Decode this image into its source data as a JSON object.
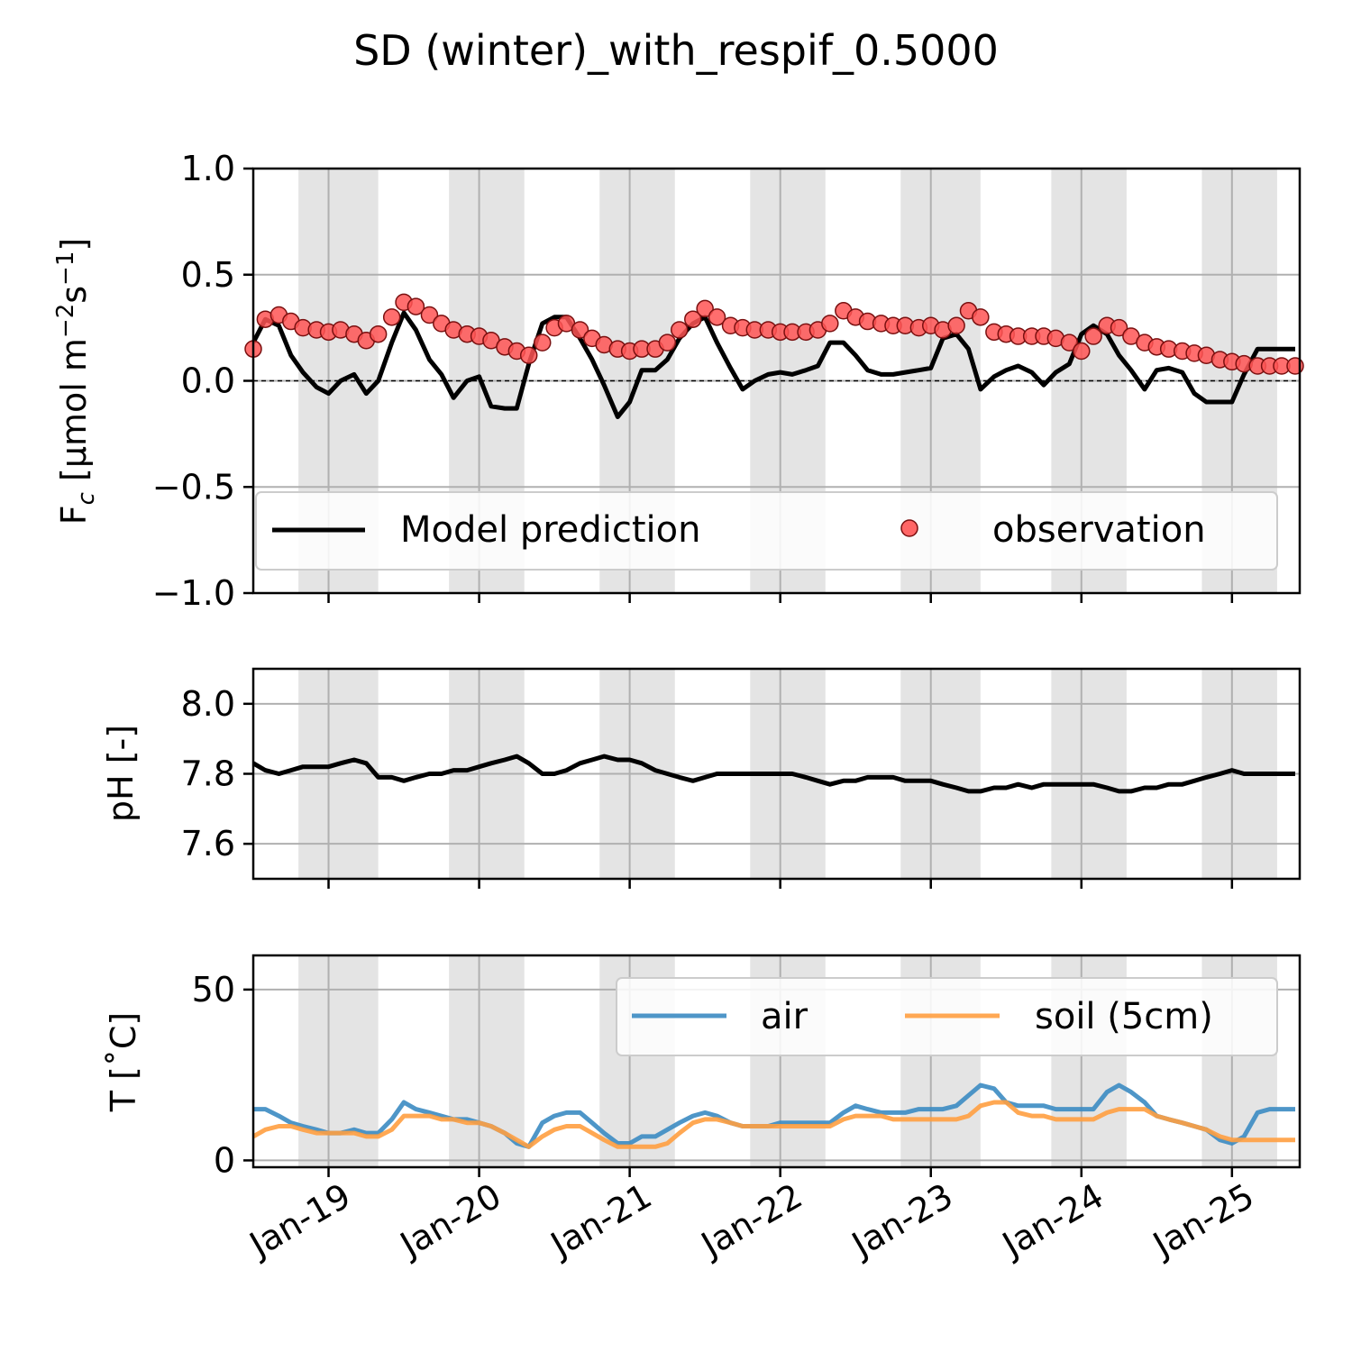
{
  "figure": {
    "title": "SD (winter)_with_respif_0.5000",
    "background": "#ffffff",
    "shade_color": "#e4e4e4",
    "grid_color": "#b0b0b0"
  },
  "chart_data": [
    {
      "type": "line",
      "panel": "flux",
      "ylabel": "F_c [μmol m⁻²s⁻¹]",
      "ylabel_parts": {
        "main": "F",
        "sub": "c",
        "unit": " [μmol m",
        "sup1": "−2",
        "mid": "s",
        "sup2": "−1",
        "end": "]"
      },
      "ylim": [
        -1.0,
        1.0
      ],
      "yticks": [
        -1.0,
        -0.5,
        0.0,
        0.5,
        1.0
      ],
      "ytick_labels": [
        "−1.0",
        "−0.5",
        "0.0",
        "0.5",
        "1.0"
      ],
      "xlim": [
        "Jan-18 12:00",
        "Jan-25 12:00"
      ],
      "grid": true,
      "zero_line": true,
      "legend": {
        "placement": "lower center",
        "columns": 2
      },
      "series": [
        {
          "name": "Model prediction",
          "kind": "line",
          "color": "#000000",
          "x": [
            18.5,
            18.58,
            18.67,
            18.75,
            18.83,
            18.92,
            19.0,
            19.08,
            19.17,
            19.25,
            19.33,
            19.42,
            19.5,
            19.58,
            19.67,
            19.75,
            19.83,
            19.92,
            20.0,
            20.08,
            20.17,
            20.25,
            20.33,
            20.42,
            20.5,
            20.58,
            20.67,
            20.75,
            20.83,
            20.92,
            21.0,
            21.08,
            21.17,
            21.25,
            21.33,
            21.42,
            21.5,
            21.58,
            21.67,
            21.75,
            21.83,
            21.92,
            22.0,
            22.08,
            22.17,
            22.25,
            22.33,
            22.42,
            22.5,
            22.58,
            22.67,
            22.75,
            22.83,
            22.92,
            23.0,
            23.08,
            23.17,
            23.25,
            23.33,
            23.42,
            23.5,
            23.58,
            23.67,
            23.75,
            23.83,
            23.92,
            24.0,
            24.08,
            24.17,
            24.25,
            24.33,
            24.42,
            24.5,
            24.58,
            24.67,
            24.75,
            24.83,
            24.92,
            25.0,
            25.08,
            25.17,
            25.25,
            25.33,
            25.42,
            25.5
          ],
          "y": [
            0.18,
            0.29,
            0.26,
            0.12,
            0.04,
            -0.03,
            -0.06,
            0.0,
            0.03,
            -0.06,
            0.0,
            0.18,
            0.32,
            0.24,
            0.1,
            0.03,
            -0.08,
            0.0,
            0.02,
            -0.12,
            -0.13,
            -0.13,
            0.08,
            0.27,
            0.3,
            0.3,
            0.2,
            0.1,
            -0.02,
            -0.17,
            -0.1,
            0.05,
            0.05,
            0.1,
            0.2,
            0.27,
            0.3,
            0.18,
            0.06,
            -0.04,
            0.0,
            0.03,
            0.04,
            0.03,
            0.05,
            0.07,
            0.18,
            0.18,
            0.12,
            0.05,
            0.03,
            0.03,
            0.04,
            0.05,
            0.06,
            0.2,
            0.22,
            0.15,
            -0.04,
            0.02,
            0.05,
            0.07,
            0.04,
            -0.02,
            0.04,
            0.08,
            0.22,
            0.26,
            0.22,
            0.12,
            0.05,
            -0.04,
            0.05,
            0.06,
            0.04,
            -0.06,
            -0.1,
            -0.1,
            -0.1,
            0.03,
            0.15,
            0.15,
            0.15,
            0.15,
            0.15
          ]
        },
        {
          "name": "observation",
          "kind": "scatter",
          "color": "#ff5555",
          "edgecolor": "#7a1010",
          "x": [
            18.5,
            18.58,
            18.67,
            18.75,
            18.83,
            18.92,
            19.0,
            19.08,
            19.17,
            19.25,
            19.33,
            19.42,
            19.5,
            19.58,
            19.67,
            19.75,
            19.83,
            19.92,
            20.0,
            20.08,
            20.17,
            20.25,
            20.33,
            20.42,
            20.5,
            20.58,
            20.67,
            20.75,
            20.83,
            20.92,
            21.0,
            21.08,
            21.17,
            21.25,
            21.33,
            21.42,
            21.5,
            21.58,
            21.67,
            21.75,
            21.83,
            21.92,
            22.0,
            22.08,
            22.17,
            22.25,
            22.33,
            22.42,
            22.5,
            22.58,
            22.67,
            22.75,
            22.83,
            22.92,
            23.0,
            23.08,
            23.17,
            23.25,
            23.33,
            23.42,
            23.5,
            23.58,
            23.67,
            23.75,
            23.83,
            23.92,
            24.0,
            24.08,
            24.17,
            24.25,
            24.33,
            24.42,
            24.5,
            24.58,
            24.67,
            24.75,
            24.83,
            24.92,
            25.0,
            25.08,
            25.17,
            25.25,
            25.33,
            25.42,
            25.5
          ],
          "y": [
            0.15,
            0.29,
            0.31,
            0.28,
            0.25,
            0.24,
            0.23,
            0.24,
            0.22,
            0.19,
            0.22,
            0.3,
            0.37,
            0.35,
            0.31,
            0.27,
            0.24,
            0.22,
            0.21,
            0.19,
            0.16,
            0.14,
            0.12,
            0.18,
            0.25,
            0.27,
            0.24,
            0.2,
            0.17,
            0.15,
            0.14,
            0.15,
            0.15,
            0.18,
            0.24,
            0.29,
            0.34,
            0.3,
            0.26,
            0.25,
            0.24,
            0.24,
            0.23,
            0.23,
            0.23,
            0.24,
            0.27,
            0.33,
            0.3,
            0.28,
            0.27,
            0.26,
            0.26,
            0.25,
            0.26,
            0.24,
            0.26,
            0.33,
            0.3,
            0.23,
            0.22,
            0.21,
            0.21,
            0.21,
            0.2,
            0.18,
            0.14,
            0.21,
            0.26,
            0.25,
            0.21,
            0.18,
            0.16,
            0.15,
            0.14,
            0.13,
            0.12,
            0.1,
            0.09,
            0.08,
            0.07,
            0.07,
            0.07,
            0.07,
            0.07
          ]
        }
      ]
    },
    {
      "type": "line",
      "panel": "ph",
      "ylabel": "pH [-]",
      "ylim": [
        7.5,
        8.1
      ],
      "yticks": [
        7.6,
        7.8,
        8.0
      ],
      "ytick_labels": [
        "7.6",
        "7.8",
        "8.0"
      ],
      "grid": true,
      "series": [
        {
          "name": "pH",
          "kind": "line",
          "color": "#000000",
          "x": [
            18.5,
            18.58,
            18.67,
            18.75,
            18.83,
            18.92,
            19.0,
            19.08,
            19.17,
            19.25,
            19.33,
            19.42,
            19.5,
            19.58,
            19.67,
            19.75,
            19.83,
            19.92,
            20.0,
            20.08,
            20.17,
            20.25,
            20.33,
            20.42,
            20.5,
            20.58,
            20.67,
            20.75,
            20.83,
            20.92,
            21.0,
            21.08,
            21.17,
            21.25,
            21.33,
            21.42,
            21.5,
            21.58,
            21.67,
            21.75,
            21.83,
            21.92,
            22.0,
            22.08,
            22.17,
            22.25,
            22.33,
            22.42,
            22.5,
            22.58,
            22.67,
            22.75,
            22.83,
            22.92,
            23.0,
            23.08,
            23.17,
            23.25,
            23.33,
            23.42,
            23.5,
            23.58,
            23.67,
            23.75,
            23.83,
            23.92,
            24.0,
            24.08,
            24.17,
            24.25,
            24.33,
            24.42,
            24.5,
            24.58,
            24.67,
            24.75,
            24.83,
            24.92,
            25.0,
            25.08,
            25.17,
            25.25,
            25.33,
            25.42,
            25.5
          ],
          "y": [
            7.83,
            7.81,
            7.8,
            7.81,
            7.82,
            7.82,
            7.82,
            7.83,
            7.84,
            7.83,
            7.79,
            7.79,
            7.78,
            7.79,
            7.8,
            7.8,
            7.81,
            7.81,
            7.82,
            7.83,
            7.84,
            7.85,
            7.83,
            7.8,
            7.8,
            7.81,
            7.83,
            7.84,
            7.85,
            7.84,
            7.84,
            7.83,
            7.81,
            7.8,
            7.79,
            7.78,
            7.79,
            7.8,
            7.8,
            7.8,
            7.8,
            7.8,
            7.8,
            7.8,
            7.79,
            7.78,
            7.77,
            7.78,
            7.78,
            7.79,
            7.79,
            7.79,
            7.78,
            7.78,
            7.78,
            7.77,
            7.76,
            7.75,
            7.75,
            7.76,
            7.76,
            7.77,
            7.76,
            7.77,
            7.77,
            7.77,
            7.77,
            7.77,
            7.76,
            7.75,
            7.75,
            7.76,
            7.76,
            7.77,
            7.77,
            7.78,
            7.79,
            7.8,
            7.81,
            7.8,
            7.8,
            7.8,
            7.8,
            7.8,
            7.8
          ]
        }
      ]
    },
    {
      "type": "line",
      "panel": "temperature",
      "ylabel": "T [˚C]",
      "ylim": [
        -2,
        60
      ],
      "yticks": [
        0,
        50
      ],
      "ytick_labels": [
        "0",
        "50"
      ],
      "xticks": [
        "Jan-19",
        "Jan-20",
        "Jan-21",
        "Jan-22",
        "Jan-23",
        "Jan-24",
        "Jan-25"
      ],
      "grid": true,
      "legend": {
        "placement": "upper right",
        "columns": 2
      },
      "series": [
        {
          "name": "air",
          "kind": "line",
          "color": "#3b8bc2",
          "x": [
            18.5,
            18.58,
            18.67,
            18.75,
            18.83,
            18.92,
            19.0,
            19.08,
            19.17,
            19.25,
            19.33,
            19.42,
            19.5,
            19.58,
            19.67,
            19.75,
            19.83,
            19.92,
            20.0,
            20.08,
            20.17,
            20.25,
            20.33,
            20.42,
            20.5,
            20.58,
            20.67,
            20.75,
            20.83,
            20.92,
            21.0,
            21.08,
            21.17,
            21.25,
            21.33,
            21.42,
            21.5,
            21.58,
            21.67,
            21.75,
            21.83,
            21.92,
            22.0,
            22.08,
            22.17,
            22.25,
            22.33,
            22.42,
            22.5,
            22.58,
            22.67,
            22.75,
            22.83,
            22.92,
            23.0,
            23.08,
            23.17,
            23.25,
            23.33,
            23.42,
            23.5,
            23.58,
            23.67,
            23.75,
            23.83,
            23.92,
            24.0,
            24.08,
            24.17,
            24.25,
            24.33,
            24.42,
            24.5,
            24.58,
            24.67,
            24.75,
            24.83,
            24.92,
            25.0,
            25.08,
            25.17,
            25.25,
            25.33,
            25.42,
            25.5
          ],
          "y": [
            15,
            15,
            13,
            11,
            10,
            9,
            8,
            8,
            9,
            8,
            8,
            12,
            17,
            15,
            14,
            13,
            12,
            12,
            11,
            10,
            8,
            5,
            4,
            11,
            13,
            14,
            14,
            11,
            8,
            5,
            5,
            7,
            7,
            9,
            11,
            13,
            14,
            13,
            11,
            10,
            10,
            10,
            11,
            11,
            11,
            11,
            11,
            14,
            16,
            15,
            14,
            14,
            14,
            15,
            15,
            15,
            16,
            19,
            22,
            21,
            17,
            16,
            16,
            16,
            15,
            15,
            15,
            15,
            20,
            22,
            20,
            17,
            13,
            12,
            11,
            10,
            9,
            6,
            5,
            7,
            14,
            15,
            15,
            15,
            15
          ]
        },
        {
          "name": "soil (5cm)",
          "kind": "line",
          "color": "#ff9f40",
          "x": [
            18.5,
            18.58,
            18.67,
            18.75,
            18.83,
            18.92,
            19.0,
            19.08,
            19.17,
            19.25,
            19.33,
            19.42,
            19.5,
            19.58,
            19.67,
            19.75,
            19.83,
            19.92,
            20.0,
            20.08,
            20.17,
            20.25,
            20.33,
            20.42,
            20.5,
            20.58,
            20.67,
            20.75,
            20.83,
            20.92,
            21.0,
            21.08,
            21.17,
            21.25,
            21.33,
            21.42,
            21.5,
            21.58,
            21.67,
            21.75,
            21.83,
            21.92,
            22.0,
            22.08,
            22.17,
            22.25,
            22.33,
            22.42,
            22.5,
            22.58,
            22.67,
            22.75,
            22.83,
            22.92,
            23.0,
            23.08,
            23.17,
            23.25,
            23.33,
            23.42,
            23.5,
            23.58,
            23.67,
            23.75,
            23.83,
            23.92,
            24.0,
            24.08,
            24.17,
            24.25,
            24.33,
            24.42,
            24.5,
            24.58,
            24.67,
            24.75,
            24.83,
            24.92,
            25.0,
            25.08,
            25.17,
            25.25,
            25.33,
            25.42,
            25.5
          ],
          "y": [
            7,
            9,
            10,
            10,
            9,
            8,
            8,
            8,
            8,
            7,
            7,
            9,
            13,
            13,
            13,
            12,
            12,
            11,
            11,
            10,
            8,
            6,
            4,
            7,
            9,
            10,
            10,
            8,
            6,
            4,
            4,
            4,
            4,
            5,
            8,
            11,
            12,
            12,
            11,
            10,
            10,
            10,
            10,
            10,
            10,
            10,
            10,
            12,
            13,
            13,
            13,
            12,
            12,
            12,
            12,
            12,
            12,
            13,
            16,
            17,
            17,
            14,
            13,
            13,
            12,
            12,
            12,
            12,
            14,
            15,
            15,
            15,
            13,
            12,
            11,
            10,
            9,
            7,
            6,
            6,
            6,
            6,
            6,
            6,
            6
          ]
        }
      ]
    }
  ]
}
